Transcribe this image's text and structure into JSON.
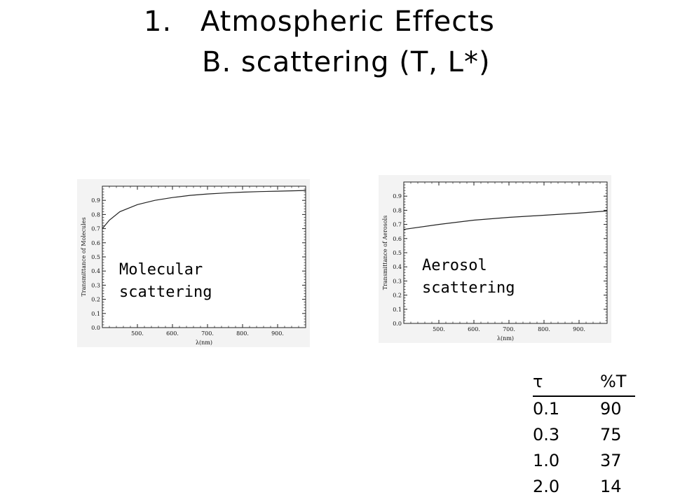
{
  "title": {
    "number": "1.",
    "main": "Atmospheric Effects",
    "sub": "B. scattering (T, L*)"
  },
  "plots": [
    {
      "ylabel": "Transmittance of Molecules",
      "xlabel": "λ(nm)",
      "caption_line1": "Molecular",
      "caption_line2": "scattering"
    },
    {
      "ylabel": "Transmittance of Aerosols",
      "xlabel": "λ(nm)",
      "caption_line1": "Aerosol",
      "caption_line2": "scattering"
    }
  ],
  "chart_data": [
    {
      "type": "line",
      "ylabel": "Transmittance of Molecules",
      "xlabel": "λ(nm)",
      "xlim": [
        400,
        980
      ],
      "ylim": [
        0,
        1.0
      ],
      "xticks": [
        "500.",
        "600.",
        "700.",
        "800.",
        "900."
      ],
      "yticks": [
        "0.0",
        "0.1",
        "0.2",
        "0.3",
        "0.4",
        "0.5",
        "0.6",
        "0.7",
        "0.8",
        "0.9"
      ],
      "x": [
        400,
        420,
        450,
        500,
        550,
        600,
        650,
        700,
        750,
        800,
        850,
        900,
        950,
        980
      ],
      "y": [
        0.7,
        0.76,
        0.82,
        0.87,
        0.9,
        0.92,
        0.935,
        0.945,
        0.952,
        0.958,
        0.962,
        0.965,
        0.968,
        0.97
      ]
    },
    {
      "type": "line",
      "ylabel": "Transmittance of Aerosols",
      "xlabel": "λ(nm)",
      "xlim": [
        400,
        980
      ],
      "ylim": [
        0,
        1.0
      ],
      "xticks": [
        "500.",
        "600.",
        "700.",
        "800.",
        "900."
      ],
      "yticks": [
        "0.0",
        "0.1",
        "0.2",
        "0.3",
        "0.4",
        "0.5",
        "0.6",
        "0.7",
        "0.8",
        "0.9"
      ],
      "x": [
        400,
        500,
        600,
        700,
        800,
        900,
        980
      ],
      "y": [
        0.665,
        0.7,
        0.73,
        0.75,
        0.765,
        0.78,
        0.795
      ]
    }
  ],
  "table": {
    "headers": [
      "τ",
      "%T"
    ],
    "rows": [
      [
        "0.1",
        "90"
      ],
      [
        "0.3",
        "75"
      ],
      [
        "1.0",
        "37"
      ],
      [
        "2.0",
        "14"
      ]
    ]
  }
}
